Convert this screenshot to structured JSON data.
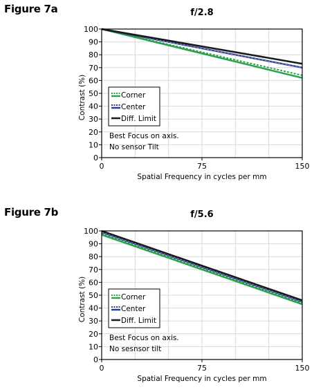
{
  "figures": [
    {
      "label": "Figure 7a"
    },
    {
      "label": "Figure 7b"
    }
  ],
  "chart_data": [
    {
      "type": "line",
      "title": "f/2.8",
      "xlabel": "Spatial Frequency in cycles per mm",
      "ylabel": "Contrast (%)",
      "xlim": [
        0,
        150
      ],
      "ylim": [
        0,
        100
      ],
      "xticks": [
        0,
        75,
        150
      ],
      "yticks": [
        0,
        10,
        20,
        30,
        40,
        50,
        60,
        70,
        80,
        90,
        100
      ],
      "grid": true,
      "legend_position": "lower-left",
      "series": [
        {
          "name": "Corner",
          "color": "#2aa14a",
          "style": "dashed+solid",
          "x": [
            0,
            150
          ],
          "y": [
            100,
            64
          ],
          "y_alt": [
            100,
            62
          ]
        },
        {
          "name": "Center",
          "color": "#2b3a8f",
          "style": "dashed",
          "x": [
            0,
            150
          ],
          "y": [
            100,
            70
          ]
        },
        {
          "name": "Diff. Limit",
          "color": "#1a1a1a",
          "style": "solid",
          "x": [
            0,
            150
          ],
          "y": [
            100,
            73
          ]
        }
      ],
      "annotations": [
        "Best Focus on axis.",
        "No sensor Tilt"
      ]
    },
    {
      "type": "line",
      "title": "f/5.6",
      "xlabel": "Spatial Frequency in cycles per mm",
      "ylabel": "Contrast (%)",
      "xlim": [
        0,
        150
      ],
      "ylim": [
        0,
        100
      ],
      "xticks": [
        0,
        75,
        150
      ],
      "yticks": [
        0,
        10,
        20,
        30,
        40,
        50,
        60,
        70,
        80,
        90,
        100
      ],
      "grid": true,
      "legend_position": "lower-left",
      "series": [
        {
          "name": "Corner",
          "color": "#2aa14a",
          "style": "dashed+solid",
          "x": [
            0,
            150
          ],
          "y": [
            98,
            44
          ],
          "y_alt": [
            97,
            43
          ]
        },
        {
          "name": "Center",
          "color": "#2b3a8f",
          "style": "dashed",
          "x": [
            0,
            150
          ],
          "y": [
            99,
            45
          ]
        },
        {
          "name": "Diff. Limit",
          "color": "#1a1a1a",
          "style": "solid",
          "x": [
            0,
            150
          ],
          "y": [
            100,
            46
          ]
        }
      ],
      "annotations": [
        "Best Focus on axis.",
        "No sesnsor tilt"
      ]
    }
  ]
}
